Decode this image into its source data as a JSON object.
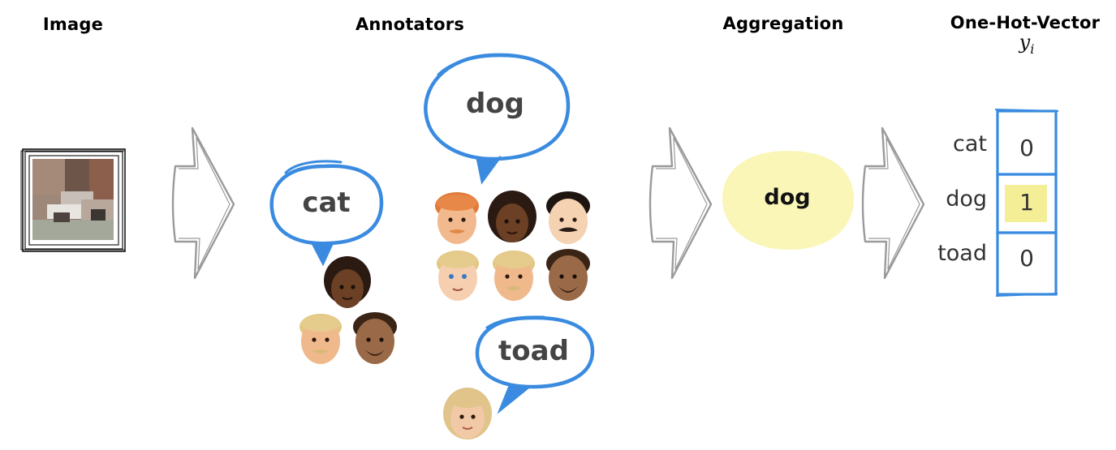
{
  "headers": {
    "image": "Image",
    "annotators": "Annotators",
    "aggregation": "Aggregation",
    "one_hot": "One-Hot-Vector",
    "one_hot_sub": "y",
    "one_hot_sub_index": "i"
  },
  "bubbles": {
    "cat": "cat",
    "dog": "dog",
    "toad": "toad"
  },
  "aggregation": {
    "label": "dog"
  },
  "vector": {
    "labels": [
      "cat",
      "dog",
      "toad"
    ],
    "values": [
      "0",
      "1",
      "0"
    ]
  },
  "colors": {
    "bubble_stroke": "#3a8be0",
    "aggregation_fill": "#faf6b8",
    "highlight": "#f4ef96",
    "arrow": "#9a9a9a"
  }
}
